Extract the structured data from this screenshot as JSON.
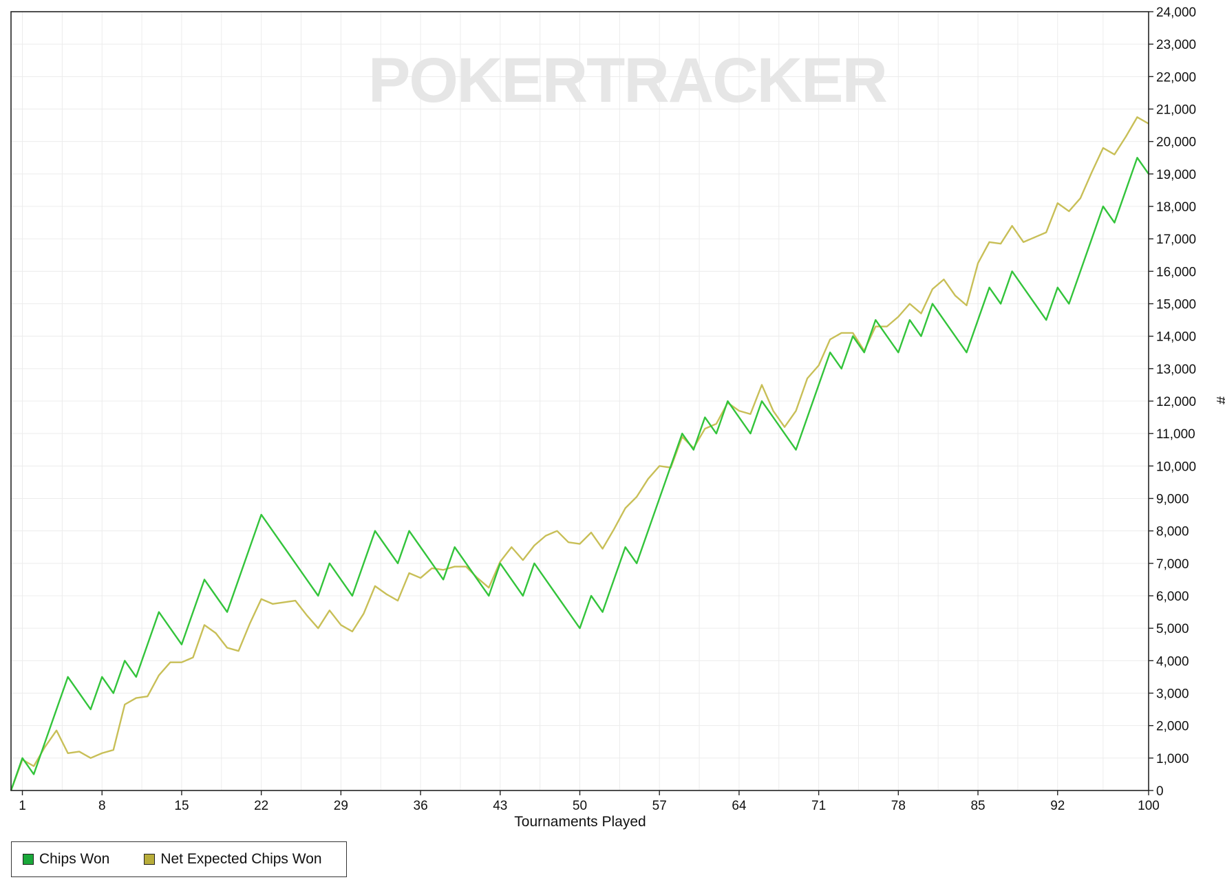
{
  "chart_data": {
    "type": "line",
    "watermark": "POKERTRACKER",
    "xlabel": "Tournaments Played",
    "ylabel": "#",
    "xlim": [
      0,
      100
    ],
    "ylim": [
      0,
      24000
    ],
    "x_ticks": [
      1,
      8,
      15,
      22,
      29,
      36,
      43,
      50,
      57,
      64,
      71,
      78,
      85,
      92,
      100
    ],
    "y_ticks": [
      "0",
      "1,000",
      "2,000",
      "3,000",
      "4,000",
      "5,000",
      "6,000",
      "7,000",
      "8,000",
      "9,000",
      "10,000",
      "11,000",
      "12,000",
      "13,000",
      "14,000",
      "15,000",
      "16,000",
      "17,000",
      "18,000",
      "19,000",
      "20,000",
      "21,000",
      "22,000",
      "23,000",
      "24,000"
    ],
    "y_tick_values": [
      0,
      1000,
      2000,
      3000,
      4000,
      5000,
      6000,
      7000,
      8000,
      9000,
      10000,
      11000,
      12000,
      13000,
      14000,
      15000,
      16000,
      17000,
      18000,
      19000,
      20000,
      21000,
      22000,
      23000,
      24000
    ],
    "grid": true,
    "legend_position": "bottom-left",
    "series": [
      {
        "name": "Chips Won",
        "color": "#33c43b",
        "values": [
          0,
          1000,
          500,
          1500,
          2500,
          3500,
          3000,
          2500,
          3500,
          3000,
          4000,
          3500,
          4500,
          5500,
          5000,
          4500,
          5500,
          6500,
          6000,
          5500,
          6500,
          7500,
          8500,
          8000,
          7500,
          7000,
          6500,
          6000,
          7000,
          6500,
          6000,
          7000,
          8000,
          7500,
          7000,
          8000,
          7500,
          7000,
          6500,
          7500,
          7000,
          6500,
          6000,
          7000,
          6500,
          6000,
          7000,
          6500,
          6000,
          5500,
          5000,
          6000,
          5500,
          6500,
          7500,
          7000,
          8000,
          9000,
          10000,
          11000,
          10500,
          11500,
          11000,
          12000,
          11500,
          11000,
          12000,
          11500,
          11000,
          10500,
          11500,
          12500,
          13500,
          13000,
          14000,
          13500,
          14500,
          14000,
          13500,
          14500,
          14000,
          15000,
          14500,
          14000,
          13500,
          14500,
          15500,
          15000,
          16000,
          15500,
          15000,
          14500,
          15500,
          15000,
          16000,
          17000,
          18000,
          17500,
          18500,
          19500,
          19000
        ]
      },
      {
        "name": "Net Expected Chips Won",
        "color": "#c8bf57",
        "values": [
          0,
          950,
          750,
          1350,
          1850,
          1150,
          1200,
          1000,
          1150,
          1250,
          2650,
          2850,
          2900,
          3550,
          3950,
          3950,
          4100,
          5100,
          4850,
          4400,
          4300,
          5150,
          5900,
          5750,
          5800,
          5850,
          5400,
          5000,
          5550,
          5100,
          4900,
          5450,
          6300,
          6050,
          5850,
          6700,
          6550,
          6850,
          6800,
          6900,
          6900,
          6550,
          6250,
          7050,
          7500,
          7100,
          7550,
          7850,
          8000,
          7650,
          7600,
          7950,
          7450,
          8050,
          8700,
          9050,
          9600,
          10000,
          9950,
          10900,
          10550,
          11150,
          11300,
          11950,
          11700,
          11600,
          12500,
          11700,
          11200,
          11700,
          12700,
          13100,
          13900,
          14100,
          14100,
          13550,
          14300,
          14300,
          14600,
          15000,
          14700,
          15450,
          15750,
          15250,
          14950,
          16250,
          16900,
          16850,
          17400,
          16900,
          17050,
          17200,
          18100,
          17850,
          18250,
          19050,
          19800,
          19600,
          20150,
          20750,
          20550
        ]
      }
    ]
  },
  "legend": {
    "items": [
      {
        "label": "Chips Won",
        "color": "#1aa83a"
      },
      {
        "label": "Net Expected Chips Won",
        "color": "#b8ad3a"
      }
    ]
  }
}
